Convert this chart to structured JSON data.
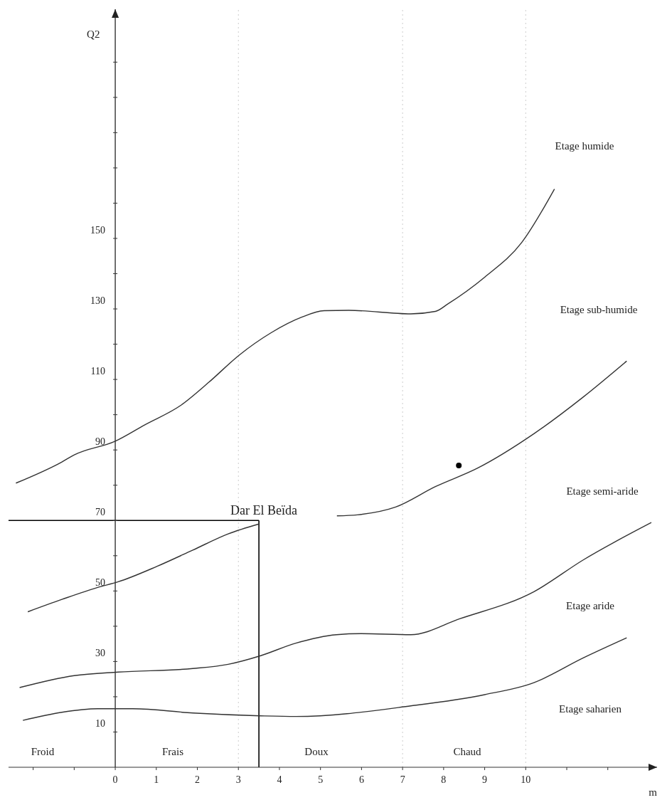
{
  "chart_data": {
    "type": "line",
    "xlabel": "m",
    "ylabel": "Q2",
    "xlim": [
      -2.6,
      13.2
    ],
    "ylim": [
      0,
      215
    ],
    "xticks": [
      {
        "value": -2,
        "label": null
      },
      {
        "value": -1,
        "label": null
      },
      0,
      1,
      2,
      3,
      4,
      5,
      6,
      7,
      8,
      9,
      10,
      {
        "value": 11,
        "label": null
      },
      {
        "value": 12,
        "label": null
      }
    ],
    "yticks": [
      10,
      {
        "value": 20,
        "label": null
      },
      30,
      {
        "value": 40,
        "label": null
      },
      50,
      {
        "value": 60,
        "label": null
      },
      70,
      {
        "value": 80,
        "label": null
      },
      90,
      {
        "value": 100,
        "label": null
      },
      110,
      {
        "value": 120,
        "label": null
      },
      130,
      {
        "value": 140,
        "label": null
      },
      150,
      {
        "value": 160,
        "label": null
      },
      {
        "value": 170,
        "label": null
      },
      {
        "value": 180,
        "label": null
      },
      {
        "value": 190,
        "label": null
      },
      {
        "value": 200,
        "label": null
      }
    ],
    "grid": false,
    "legend": false,
    "series": [
      {
        "color": "#333333",
        "x": [
          -2.42,
          -1.3,
          -1.0,
          0,
          0.73,
          1.59,
          2.28,
          3.03,
          3.79,
          4.53,
          5.09,
          5.69,
          7.2,
          7.8,
          8.1,
          9.0,
          9.9,
          10.7
        ],
        "values": [
          80.6,
          86.6,
          88.6,
          92.5,
          97.2,
          102.6,
          109.2,
          117,
          123.2,
          127.6,
          129.5,
          129.6,
          128.6,
          129.3,
          131.4,
          139,
          148.8,
          164
        ]
      },
      {
        "color": "#333333",
        "x": [
          5.4,
          5.9,
          6.83,
          7.8,
          8.82,
          10.2,
          11.4,
          12.46
        ],
        "values": [
          71.3,
          71.6,
          73.8,
          79.6,
          84.8,
          94.6,
          105,
          115.2
        ]
      },
      {
        "color": "#333333",
        "x": [
          -2.13,
          -1.3,
          -0.43,
          0.07,
          1.02,
          1.89,
          2.75,
          3.5
        ],
        "values": [
          44.1,
          47.6,
          51,
          52.6,
          57,
          61.6,
          66.2,
          69
        ]
      },
      {
        "color": "#333333",
        "x": [
          -2.33,
          -1.0,
          0.07,
          1.89,
          2.75,
          3.53,
          4.4,
          5.39,
          5.99,
          7.2,
          8.39,
          10.2,
          11.4,
          13.06
        ],
        "values": [
          22.6,
          26,
          27,
          28,
          29.2,
          31.6,
          35.2,
          37.6,
          37.9,
          37.6,
          42.1,
          49.8,
          58.8,
          69.4
        ]
      },
      {
        "color": "#333333",
        "x": [
          -2.25,
          -1.3,
          -0.43,
          0.43,
          1.89,
          3.53,
          4.4,
          7.2,
          9.0,
          10.2,
          11.4,
          12.46
        ],
        "values": [
          13.3,
          15.6,
          16.6,
          16.6,
          15.4,
          14.6,
          14.4,
          17.4,
          20.6,
          24,
          31,
          36.7
        ]
      },
      {
        "type": "scatter",
        "color": "#000000",
        "x": [
          8.37
        ],
        "values": [
          85.6
        ]
      }
    ],
    "ref_lines": [
      {
        "axis": "x",
        "value": 3.5,
        "color": "#000000",
        "line_style": "solid"
      },
      {
        "axis": "y",
        "value": 70,
        "color": "#000000",
        "line_style": "solid"
      },
      {
        "axis": "x",
        "value": 3,
        "color": "#cccccc",
        "line_style": "dotted"
      },
      {
        "axis": "x",
        "value": 7,
        "color": "#cccccc",
        "line_style": "dotted"
      },
      {
        "axis": "x",
        "value": 10,
        "color": "#cccccc",
        "line_style": "dotted"
      }
    ],
    "annotations": [
      {
        "text": "Dar El Beïda",
        "x": 3.5,
        "y": 70
      },
      "Froid",
      "Frais",
      "Doux",
      "Chaud",
      "Etage humide",
      "Etage sub-humide",
      "Etage semi-aride",
      "Etage aride",
      "Etage saharien"
    ]
  }
}
